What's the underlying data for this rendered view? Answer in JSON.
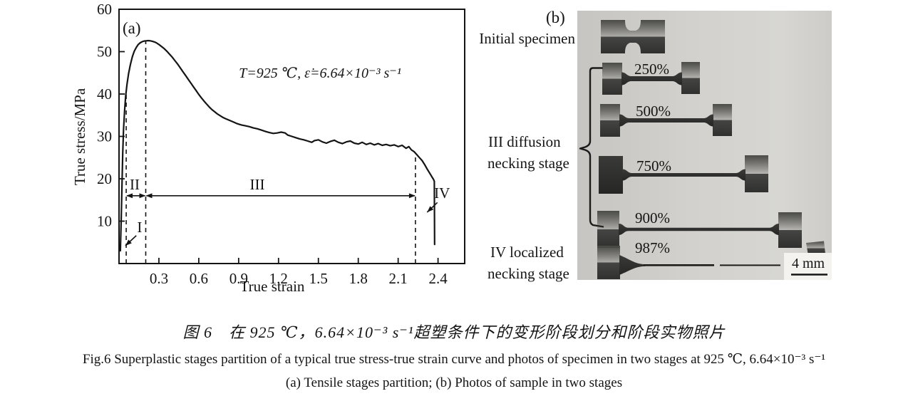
{
  "figure_caption": {
    "zh": "图 6　在 925 ℃，6.64×10⁻³ s⁻¹超塑条件下的变形阶段划分和阶段实物照片",
    "en": "Fig.6  Superplastic stages partition of a typical true stress-true strain curve and photos of specimen in two stages at 925 ℃, 6.64×10⁻³ s⁻¹",
    "sub": "(a) Tensile stages partition; (b) Photos of sample in two stages"
  },
  "panel_a": {
    "label": "(a)",
    "condition": "T=925 ℃,  ε̇=6.64×10⁻³ s⁻¹"
  },
  "panel_b": {
    "label": "(b)",
    "initial_label": "Initial specimen",
    "stage3_label_line1": "III diffusion",
    "stage3_label_line2": "necking stage",
    "stage4_label_line1": "IV localized",
    "stage4_label_line2": "necking stage",
    "specimens": [
      {
        "label": "250%"
      },
      {
        "label": "500%"
      },
      {
        "label": "750%"
      },
      {
        "label": "900%"
      },
      {
        "label": "987%"
      }
    ],
    "scale_bar_label": "4 mm"
  },
  "chart_data": {
    "type": "line",
    "title": "",
    "xlabel": "True strain",
    "ylabel": "True stress/MPa",
    "xlim": [
      0,
      2.6
    ],
    "ylim": [
      0,
      60
    ],
    "xticks": [
      0.3,
      0.6,
      0.9,
      1.2,
      1.5,
      1.8,
      2.1,
      2.4
    ],
    "yticks": [
      10,
      20,
      30,
      40,
      50,
      60
    ],
    "grid": false,
    "legend": "none",
    "annotation": "T=925 ℃,  ε̇=6.64×10⁻³ s⁻¹",
    "series": [
      {
        "name": "true stress-true strain curve",
        "points": [
          [
            0.01,
            3
          ],
          [
            0.016,
            10
          ],
          [
            0.022,
            18
          ],
          [
            0.028,
            26
          ],
          [
            0.034,
            31.5
          ],
          [
            0.042,
            36
          ],
          [
            0.05,
            39.5
          ],
          [
            0.06,
            42.3
          ],
          [
            0.072,
            44.8
          ],
          [
            0.085,
            46.9
          ],
          [
            0.1,
            48.8
          ],
          [
            0.115,
            50.1
          ],
          [
            0.13,
            51.0
          ],
          [
            0.145,
            51.7
          ],
          [
            0.16,
            52.1
          ],
          [
            0.175,
            52.35
          ],
          [
            0.19,
            52.5
          ],
          [
            0.205,
            52.55
          ],
          [
            0.22,
            52.6
          ],
          [
            0.235,
            52.55
          ],
          [
            0.25,
            52.45
          ],
          [
            0.265,
            52.3
          ],
          [
            0.28,
            52.1
          ],
          [
            0.3,
            51.7
          ],
          [
            0.32,
            51.2
          ],
          [
            0.34,
            50.7
          ],
          [
            0.36,
            50.1
          ],
          [
            0.38,
            49.4
          ],
          [
            0.4,
            48.7
          ],
          [
            0.42,
            47.9
          ],
          [
            0.44,
            47.1
          ],
          [
            0.46,
            46.2
          ],
          [
            0.48,
            45.3
          ],
          [
            0.5,
            44.4
          ],
          [
            0.52,
            43.5
          ],
          [
            0.54,
            42.6
          ],
          [
            0.56,
            41.7
          ],
          [
            0.58,
            40.8
          ],
          [
            0.6,
            39.9
          ],
          [
            0.62,
            39.1
          ],
          [
            0.64,
            38.3
          ],
          [
            0.66,
            37.6
          ],
          [
            0.68,
            36.9
          ],
          [
            0.7,
            36.3
          ],
          [
            0.72,
            35.8
          ],
          [
            0.74,
            35.3
          ],
          [
            0.76,
            34.9
          ],
          [
            0.78,
            34.5
          ],
          [
            0.8,
            34.2
          ],
          [
            0.83,
            33.8
          ],
          [
            0.86,
            33.4
          ],
          [
            0.89,
            33.0
          ],
          [
            0.92,
            32.7
          ],
          [
            0.95,
            32.5
          ],
          [
            0.98,
            32.3
          ],
          [
            1.01,
            32.0
          ],
          [
            1.04,
            31.8
          ],
          [
            1.07,
            31.5
          ],
          [
            1.1,
            31.2
          ],
          [
            1.13,
            30.9
          ],
          [
            1.16,
            30.7
          ],
          [
            1.19,
            30.8
          ],
          [
            1.22,
            31.0
          ],
          [
            1.25,
            30.8
          ],
          [
            1.27,
            30.3
          ],
          [
            1.3,
            30.0
          ],
          [
            1.33,
            29.7
          ],
          [
            1.36,
            29.4
          ],
          [
            1.39,
            29.2
          ],
          [
            1.42,
            28.9
          ],
          [
            1.45,
            28.6
          ],
          [
            1.47,
            29.0
          ],
          [
            1.5,
            29.2
          ],
          [
            1.53,
            28.7
          ],
          [
            1.56,
            28.4
          ],
          [
            1.59,
            28.8
          ],
          [
            1.62,
            29.1
          ],
          [
            1.65,
            28.6
          ],
          [
            1.68,
            28.3
          ],
          [
            1.71,
            28.7
          ],
          [
            1.74,
            28.9
          ],
          [
            1.77,
            28.4
          ],
          [
            1.8,
            28.2
          ],
          [
            1.83,
            28.6
          ],
          [
            1.86,
            28.1
          ],
          [
            1.89,
            28.4
          ],
          [
            1.92,
            28.0
          ],
          [
            1.95,
            28.3
          ],
          [
            1.98,
            27.9
          ],
          [
            2.01,
            28.1
          ],
          [
            2.04,
            27.8
          ],
          [
            2.07,
            28.0
          ],
          [
            2.1,
            27.6
          ],
          [
            2.13,
            27.9
          ],
          [
            2.16,
            27.2
          ],
          [
            2.18,
            27.6
          ],
          [
            2.2,
            26.8
          ],
          [
            2.22,
            26.4
          ],
          [
            2.24,
            25.7
          ],
          [
            2.26,
            25.0
          ],
          [
            2.28,
            24.3
          ],
          [
            2.3,
            23.3
          ],
          [
            2.32,
            22.2
          ],
          [
            2.34,
            21.2
          ],
          [
            2.355,
            20.4
          ],
          [
            2.365,
            19.9
          ],
          [
            2.372,
            19.4
          ],
          [
            2.374,
            4.5
          ]
        ]
      }
    ],
    "stage_boundaries": [
      {
        "strain": 0.054,
        "line_top_stress": 40.5
      },
      {
        "strain": 0.201,
        "line_top_stress": 52.6
      },
      {
        "strain": 2.23,
        "line_top_stress": 25.2
      }
    ],
    "stage_markers": [
      {
        "label": "I",
        "kind": "pointer",
        "label_at": [
          0.155,
          7.4
        ],
        "arrow_from": [
          0.13,
          6.6
        ],
        "arrow_to": [
          0.048,
          4.2
        ]
      },
      {
        "label": "II",
        "kind": "span",
        "stress": 16,
        "from": 0.054,
        "to": 0.201,
        "label_at": [
          0.118,
          17.5
        ]
      },
      {
        "label": "III",
        "kind": "span",
        "stress": 16,
        "from": 0.201,
        "to": 2.23,
        "label_at": [
          1.04,
          17.5
        ]
      },
      {
        "label": "IV",
        "kind": "pointer",
        "label_at": [
          2.43,
          15.5
        ],
        "arrow_from": [
          2.395,
          14.4
        ],
        "arrow_to": [
          2.318,
          12.1
        ]
      }
    ]
  }
}
